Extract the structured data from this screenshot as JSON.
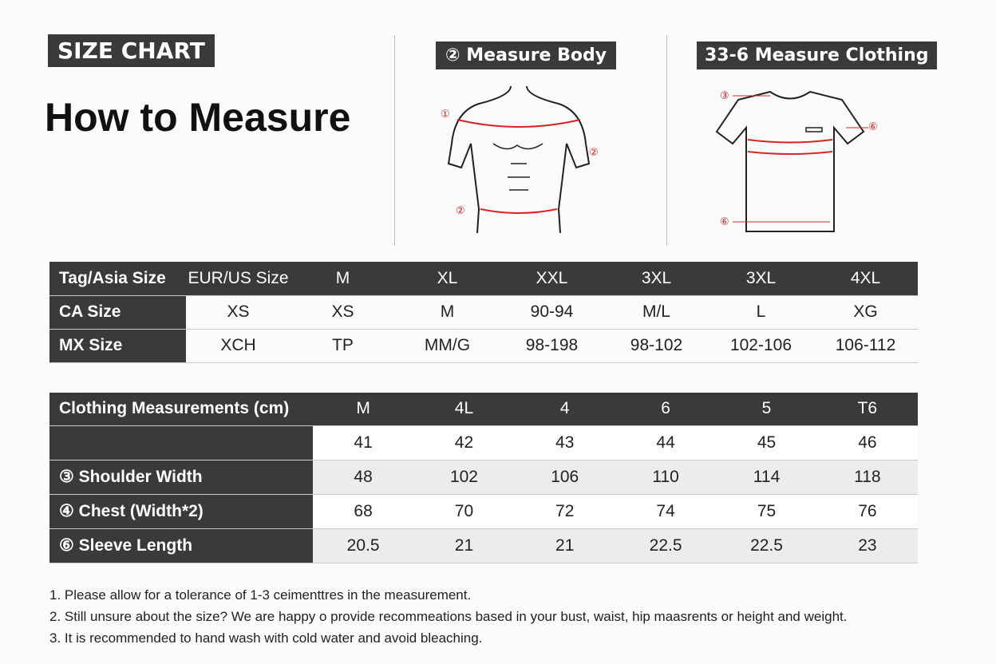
{
  "header": {
    "badge": "SIZE CHART",
    "title": "How to Measure"
  },
  "body_panel": {
    "label": "② Measure Body",
    "markers": [
      "①",
      "②",
      "②"
    ]
  },
  "clothing_panel": {
    "label": "33-6 Measure Clothing",
    "markers": [
      "③",
      "⑥",
      "⑥"
    ]
  },
  "size_table": {
    "rows": [
      [
        "Tag/Asia Size",
        "EUR/US Size",
        "M",
        "XL",
        "XXL",
        "3XL",
        "3XL",
        "4XL"
      ],
      [
        "CA Size",
        "XS",
        "XS",
        "M",
        "90-94",
        "M/L",
        "L",
        "XG"
      ],
      [
        "MX Size",
        "XCH",
        "TP",
        "MM/G",
        "98-198",
        "98-102",
        "102-106",
        "106-112"
      ]
    ]
  },
  "measure_table": {
    "header": [
      "Clothing Measurements (cm)",
      "M",
      "4L",
      "4",
      "6",
      "5",
      "T6"
    ],
    "rows": [
      {
        "label": null,
        "values": [
          41,
          42,
          43,
          44,
          45,
          46
        ]
      },
      {
        "label": "③ Shoulder Width",
        "values": [
          48,
          102,
          106,
          110,
          114,
          118
        ]
      },
      {
        "label": "④ Chest (Width*2)",
        "values": [
          68,
          70,
          72,
          74,
          75,
          76
        ]
      },
      {
        "label": "⑥ Sleeve Length",
        "values": [
          20.5,
          21,
          21,
          22.5,
          22.5,
          23
        ]
      }
    ]
  },
  "notes": [
    "1. Please allow for a tolerance of 1-3 ceimenttres in the measurement.",
    "2. Still unsure about the size? We are happy o provide recommeations based in your bust, waist, hip maasrents or height and weight.",
    "3. It is recommended to hand wash with cold water and avoid bleaching."
  ]
}
